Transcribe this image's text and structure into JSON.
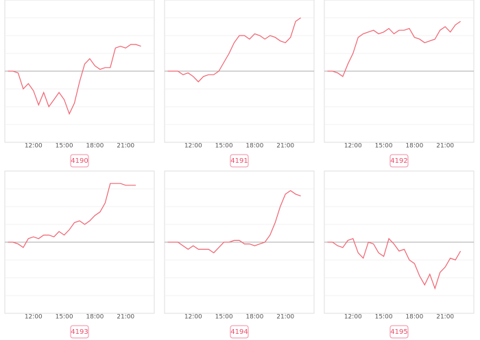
{
  "chart_data": [
    {
      "type": "line",
      "title": "4190",
      "color": "#f0606e",
      "x": [
        9.5,
        10,
        10.5,
        11,
        11.5,
        12,
        12.5,
        13,
        13.5,
        14,
        14.5,
        15,
        15.5,
        16,
        16.5,
        17,
        17.5,
        18,
        18.5,
        19,
        19.5,
        20,
        20.5,
        21,
        21.5,
        22,
        22.5
      ],
      "values": [
        0,
        0,
        -0.1,
        -1.0,
        -0.7,
        -1.1,
        -1.9,
        -1.2,
        -2.0,
        -1.6,
        -1.2,
        -1.6,
        -2.4,
        -1.8,
        -0.6,
        0.4,
        0.7,
        0.3,
        0.1,
        0.2,
        0.2,
        1.3,
        1.4,
        1.3,
        1.5,
        1.5,
        1.4
      ],
      "xlim": [
        9.2,
        23.8
      ],
      "xticks": [
        {
          "value": 12,
          "label": "12:00"
        },
        {
          "value": 15,
          "label": "15:00"
        },
        {
          "value": 18,
          "label": "18:00"
        },
        {
          "value": 21,
          "label": "21:00"
        }
      ],
      "ylim": [
        -4,
        4
      ],
      "yticks": [
        -3,
        -2,
        -1,
        0,
        1,
        2,
        3
      ]
    },
    {
      "type": "line",
      "title": "4191",
      "color": "#f0606e",
      "x": [
        9.5,
        10,
        10.5,
        11,
        11.5,
        12,
        12.5,
        13,
        13.5,
        14,
        14.5,
        15,
        15.5,
        16,
        16.5,
        17,
        17.5,
        18,
        18.5,
        19,
        19.5,
        20,
        20.5,
        21,
        21.5,
        22,
        22.5
      ],
      "values": [
        0,
        0,
        0,
        -0.2,
        -0.1,
        -0.3,
        -0.6,
        -0.3,
        -0.2,
        -0.2,
        0,
        0.5,
        1.0,
        1.6,
        2.0,
        2.0,
        1.8,
        2.1,
        2.0,
        1.8,
        2.0,
        1.9,
        1.7,
        1.6,
        1.9,
        2.8,
        3.0
      ],
      "xlim": [
        9.2,
        23.8
      ],
      "xticks": [
        {
          "value": 12,
          "label": "12:00"
        },
        {
          "value": 15,
          "label": "15:00"
        },
        {
          "value": 18,
          "label": "18:00"
        },
        {
          "value": 21,
          "label": "21:00"
        }
      ],
      "ylim": [
        -4,
        4
      ],
      "yticks": [
        -3,
        -2,
        -1,
        0,
        1,
        2,
        3
      ]
    },
    {
      "type": "line",
      "title": "4192",
      "color": "#f0606e",
      "x": [
        9.5,
        10,
        10.5,
        11,
        11.5,
        12,
        12.5,
        13,
        13.5,
        14,
        14.5,
        15,
        15.5,
        16,
        16.5,
        17,
        17.5,
        18,
        18.5,
        19,
        19.5,
        20,
        20.5,
        21,
        21.5,
        22,
        22.5
      ],
      "values": [
        0,
        0,
        -0.1,
        -0.3,
        0.4,
        1.0,
        1.9,
        2.1,
        2.2,
        2.3,
        2.1,
        2.2,
        2.4,
        2.1,
        2.3,
        2.3,
        2.4,
        1.9,
        1.8,
        1.6,
        1.7,
        1.8,
        2.3,
        2.5,
        2.2,
        2.6,
        2.8
      ],
      "xlim": [
        9.2,
        23.8
      ],
      "xticks": [
        {
          "value": 12,
          "label": "12:00"
        },
        {
          "value": 15,
          "label": "15:00"
        },
        {
          "value": 18,
          "label": "18:00"
        },
        {
          "value": 21,
          "label": "21:00"
        }
      ],
      "ylim": [
        -4,
        4
      ],
      "yticks": [
        -3,
        -2,
        -1,
        0,
        1,
        2,
        3
      ]
    },
    {
      "type": "line",
      "title": "4193",
      "color": "#f0606e",
      "x": [
        9.5,
        10,
        10.5,
        11,
        11.5,
        12,
        12.5,
        13,
        13.5,
        14,
        14.5,
        15,
        15.5,
        16,
        16.5,
        17,
        17.5,
        18,
        18.5,
        19,
        19.5,
        20,
        20.5,
        21,
        21.5,
        22
      ],
      "values": [
        0,
        0,
        -0.1,
        -0.3,
        0.2,
        0.3,
        0.2,
        0.4,
        0.4,
        0.3,
        0.6,
        0.4,
        0.7,
        1.1,
        1.2,
        1.0,
        1.2,
        1.5,
        1.7,
        2.2,
        3.3,
        3.3,
        3.3,
        3.2,
        3.2,
        3.2
      ],
      "xlim": [
        9.2,
        23.8
      ],
      "xticks": [
        {
          "value": 12,
          "label": "12:00"
        },
        {
          "value": 15,
          "label": "15:00"
        },
        {
          "value": 18,
          "label": "18:00"
        },
        {
          "value": 21,
          "label": "21:00"
        }
      ],
      "ylim": [
        -4,
        4
      ],
      "yticks": [
        -3,
        -2,
        -1,
        0,
        1,
        2,
        3
      ]
    },
    {
      "type": "line",
      "title": "4194",
      "color": "#f0606e",
      "x": [
        9.5,
        10,
        10.5,
        11,
        11.5,
        12,
        12.5,
        13,
        13.5,
        14,
        14.5,
        15,
        15.5,
        16,
        16.5,
        17,
        17.5,
        18,
        18.5,
        19,
        19.5,
        20,
        20.5,
        21,
        21.5,
        22,
        22.5
      ],
      "values": [
        0,
        0,
        0,
        -0.2,
        -0.4,
        -0.2,
        -0.4,
        -0.4,
        -0.4,
        -0.6,
        -0.3,
        0,
        0,
        0.1,
        0.1,
        -0.1,
        -0.1,
        -0.2,
        -0.1,
        0,
        0.4,
        1.1,
        2.0,
        2.7,
        2.9,
        2.7,
        2.6
      ],
      "xlim": [
        9.2,
        23.8
      ],
      "xticks": [
        {
          "value": 12,
          "label": "12:00"
        },
        {
          "value": 15,
          "label": "15:00"
        },
        {
          "value": 18,
          "label": "18:00"
        },
        {
          "value": 21,
          "label": "21:00"
        }
      ],
      "ylim": [
        -4,
        4
      ],
      "yticks": [
        -3,
        -2,
        -1,
        0,
        1,
        2,
        3
      ]
    },
    {
      "type": "line",
      "title": "4195",
      "color": "#f0606e",
      "x": [
        9.5,
        10,
        10.5,
        11,
        11.5,
        12,
        12.5,
        13,
        13.5,
        14,
        14.5,
        15,
        15.5,
        16,
        16.5,
        17,
        17.5,
        18,
        18.5,
        19,
        19.5,
        20,
        20.5,
        21,
        21.5,
        22,
        22.5
      ],
      "values": [
        0,
        0,
        -0.2,
        -0.3,
        0.1,
        0.2,
        -0.6,
        -0.9,
        0,
        -0.1,
        -0.6,
        -0.8,
        0.2,
        -0.1,
        -0.5,
        -0.4,
        -1.0,
        -1.2,
        -1.9,
        -2.4,
        -1.8,
        -2.6,
        -1.7,
        -1.4,
        -0.9,
        -1.0,
        -0.5
      ],
      "xlim": [
        9.2,
        23.8
      ],
      "xticks": [
        {
          "value": 12,
          "label": "12:00"
        },
        {
          "value": 15,
          "label": "15:00"
        },
        {
          "value": 18,
          "label": "18:00"
        },
        {
          "value": 21,
          "label": "21:00"
        }
      ],
      "ylim": [
        -4,
        4
      ],
      "yticks": [
        -3,
        -2,
        -1,
        0,
        1,
        2,
        3
      ]
    }
  ]
}
